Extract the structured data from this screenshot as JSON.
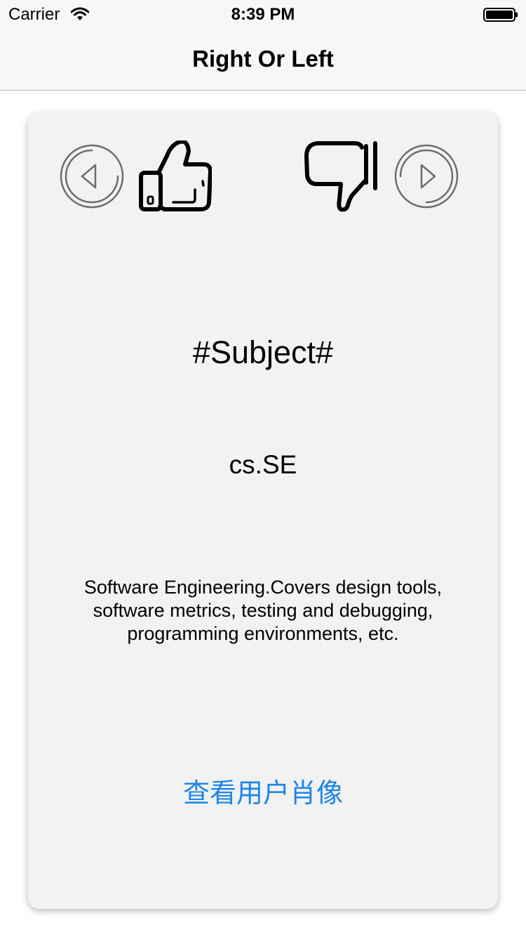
{
  "status_bar": {
    "carrier": "Carrier",
    "time": "8:39 PM",
    "wifi_icon": "wifi-icon",
    "battery_icon": "battery-full-icon"
  },
  "nav": {
    "title": "Right Or Left"
  },
  "card": {
    "controls": {
      "previous_icon": "chevron-left-circle-icon",
      "like_icon": "thumbs-up-icon",
      "dislike_icon": "thumbs-down-icon",
      "next_icon": "chevron-right-circle-icon"
    },
    "subject_title": "#Subject#",
    "subject_code": "cs.SE",
    "subject_description": "Software Engineering.Covers design tools, software metrics, testing and debugging, programming environments, etc.",
    "view_avatar_label": "查看用户肖像"
  },
  "colors": {
    "link": "#1d86e8",
    "card_background": "#f2f2f2",
    "nav_background": "#f7f7f7"
  }
}
